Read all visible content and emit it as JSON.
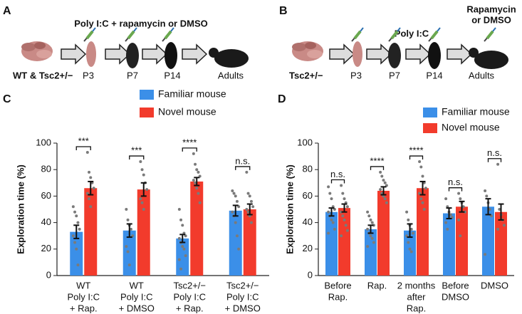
{
  "diagrams": [
    {
      "letter": "A",
      "title": "Poly I:C + rapamycin or DMSO",
      "group": "WT & Tsc2+/−",
      "stages": [
        "P3",
        "P7",
        "P14",
        "Adults"
      ]
    },
    {
      "letter": "B",
      "title": "Poly I:C",
      "group": "Tsc2+/−",
      "stages": [
        "P3",
        "P7",
        "P14",
        "Adults"
      ],
      "note": [
        "Rapamycin",
        "or DMSO"
      ]
    }
  ],
  "chart_data": [
    {
      "type": "bar",
      "letter": "C",
      "ylabel": "Exploration time (%)",
      "ylim": [
        0,
        100
      ],
      "yticks": [
        0,
        20,
        40,
        60,
        80,
        100
      ],
      "categories": [
        [
          "WT",
          "Poly I:C",
          "+ Rap."
        ],
        [
          "WT",
          "Poly I:C",
          "+ DMSO"
        ],
        [
          "Tsc2+/−",
          "Poly I:C",
          "+ Rap."
        ],
        [
          "Tsc2+/−",
          "Poly I:C",
          "+ DMSO"
        ]
      ],
      "significance": [
        "***",
        "***",
        "****",
        "n.s."
      ],
      "series": [
        {
          "name": "Familiar mouse",
          "color": "#3b8fe8",
          "values": [
            33,
            34,
            28,
            49
          ],
          "errors": [
            5,
            5,
            3,
            4
          ],
          "points": [
            [
              52,
              48,
              45,
              40,
              35,
              30,
              25,
              20,
              8
            ],
            [
              50,
              42,
              38,
              35,
              30,
              22,
              18,
              8
            ],
            [
              50,
              42,
              38,
              32,
              30,
              28,
              25,
              22,
              20,
              15,
              12,
              5
            ],
            [
              64,
              62,
              60,
              56,
              52,
              48,
              45,
              40,
              30,
              20
            ]
          ]
        },
        {
          "name": "Novel mouse",
          "color": "#f23b2c",
          "values": [
            66,
            65,
            71,
            50
          ],
          "errors": [
            5,
            5,
            3,
            4
          ],
          "points": [
            [
              93,
              78,
              74,
              70,
              66,
              62,
              58,
              52
            ],
            [
              86,
              80,
              76,
              70,
              65,
              58,
              55,
              50
            ],
            [
              92,
              84,
              80,
              78,
              75,
              72,
              70,
              66,
              62,
              55
            ],
            [
              78,
              62,
              60,
              56,
              52,
              50,
              48,
              45,
              40
            ]
          ]
        }
      ]
    },
    {
      "type": "bar",
      "letter": "D",
      "ylabel": "Exploration time (%)",
      "ylim": [
        0,
        100
      ],
      "yticks": [
        0,
        20,
        40,
        60,
        80,
        100
      ],
      "categories": [
        [
          "Before",
          "Rap."
        ],
        [
          "Rap."
        ],
        [
          "2 months",
          "after",
          "Rap."
        ],
        [
          "Before",
          "DMSO"
        ],
        [
          "DMSO"
        ]
      ],
      "significance": [
        "n.s.",
        "****",
        "****",
        "n.s.",
        "n.s."
      ],
      "series": [
        {
          "name": "Familiar mouse",
          "color": "#3b8fe8",
          "values": [
            48,
            35,
            34,
            47,
            52
          ],
          "errors": [
            3,
            3,
            5,
            4,
            6
          ],
          "points": [
            [
              67,
              62,
              58,
              52,
              50,
              48,
              45,
              42,
              40,
              35,
              32
            ],
            [
              48,
              45,
              42,
              40,
              38,
              35,
              32,
              30,
              28,
              25,
              22
            ],
            [
              48,
              42,
              38,
              35,
              32,
              30,
              25,
              20,
              18
            ],
            [
              58,
              52,
              48,
              46,
              44,
              40,
              35
            ],
            [
              64,
              60,
              55,
              50,
              45,
              16
            ]
          ]
        },
        {
          "name": "Novel mouse",
          "color": "#f23b2c",
          "values": [
            51,
            64,
            66,
            52,
            48
          ],
          "errors": [
            3,
            3,
            5,
            4,
            6
          ],
          "points": [
            [
              68,
              62,
              58,
              55,
              52,
              48,
              45,
              42,
              38,
              34,
              30
            ],
            [
              78,
              75,
              72,
              70,
              68,
              65,
              62,
              60,
              58,
              55
            ],
            [
              86,
              82,
              75,
              70,
              66,
              62,
              58,
              55,
              50
            ],
            [
              62,
              58,
              55,
              52,
              48,
              42,
              30
            ],
            [
              84,
              50,
              46,
              42,
              38,
              35
            ]
          ]
        }
      ]
    }
  ]
}
